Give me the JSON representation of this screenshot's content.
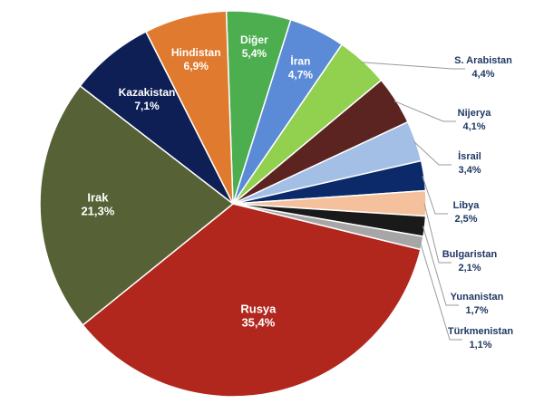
{
  "chart_data": {
    "type": "pie",
    "title": "",
    "start_angle_deg": 0,
    "direction": "clockwise",
    "slices": [
      {
        "name": "Diğer",
        "value": 5.4,
        "label": "5,4%",
        "color": "#4cae4f",
        "label_placement": "inside"
      },
      {
        "name": "İran",
        "value": 4.7,
        "label": "4,7%",
        "color": "#5b8bd6",
        "label_placement": "inside"
      },
      {
        "name": "S. Arabistan",
        "value": 4.4,
        "label": "4,4%",
        "color": "#92d050",
        "label_placement": "outside"
      },
      {
        "name": "Nijerya",
        "value": 4.1,
        "label": "4,1%",
        "color": "#5c2421",
        "label_placement": "outside"
      },
      {
        "name": "İsrail",
        "value": 3.4,
        "label": "3,4%",
        "color": "#a4bfe6",
        "label_placement": "outside"
      },
      {
        "name": "Libya",
        "value": 2.5,
        "label": "2,5%",
        "color": "#0c2a6a",
        "label_placement": "outside"
      },
      {
        "name": "Bulgaristan",
        "value": 2.1,
        "label": "2,1%",
        "color": "#f4c19c",
        "label_placement": "outside"
      },
      {
        "name": "Yunanistan",
        "value": 1.7,
        "label": "1,7%",
        "color": "#1a1a1a",
        "label_placement": "outside"
      },
      {
        "name": "Türkmenistan",
        "value": 1.1,
        "label": "1,1%",
        "color": "#a6a6a6",
        "label_placement": "outside"
      },
      {
        "name": "Rusya",
        "value": 35.4,
        "label": "35,4%",
        "color": "#b1261d",
        "label_placement": "inside"
      },
      {
        "name": "Irak",
        "value": 21.3,
        "label": "21,3%",
        "color": "#566235",
        "label_placement": "inside"
      },
      {
        "name": "Kazakistan",
        "value": 7.1,
        "label": "7,1%",
        "color": "#0d1f55",
        "label_placement": "inside"
      },
      {
        "name": "Hindistan",
        "value": 6.9,
        "label": "6,9%",
        "color": "#e07a2f",
        "label_placement": "inside"
      }
    ]
  }
}
